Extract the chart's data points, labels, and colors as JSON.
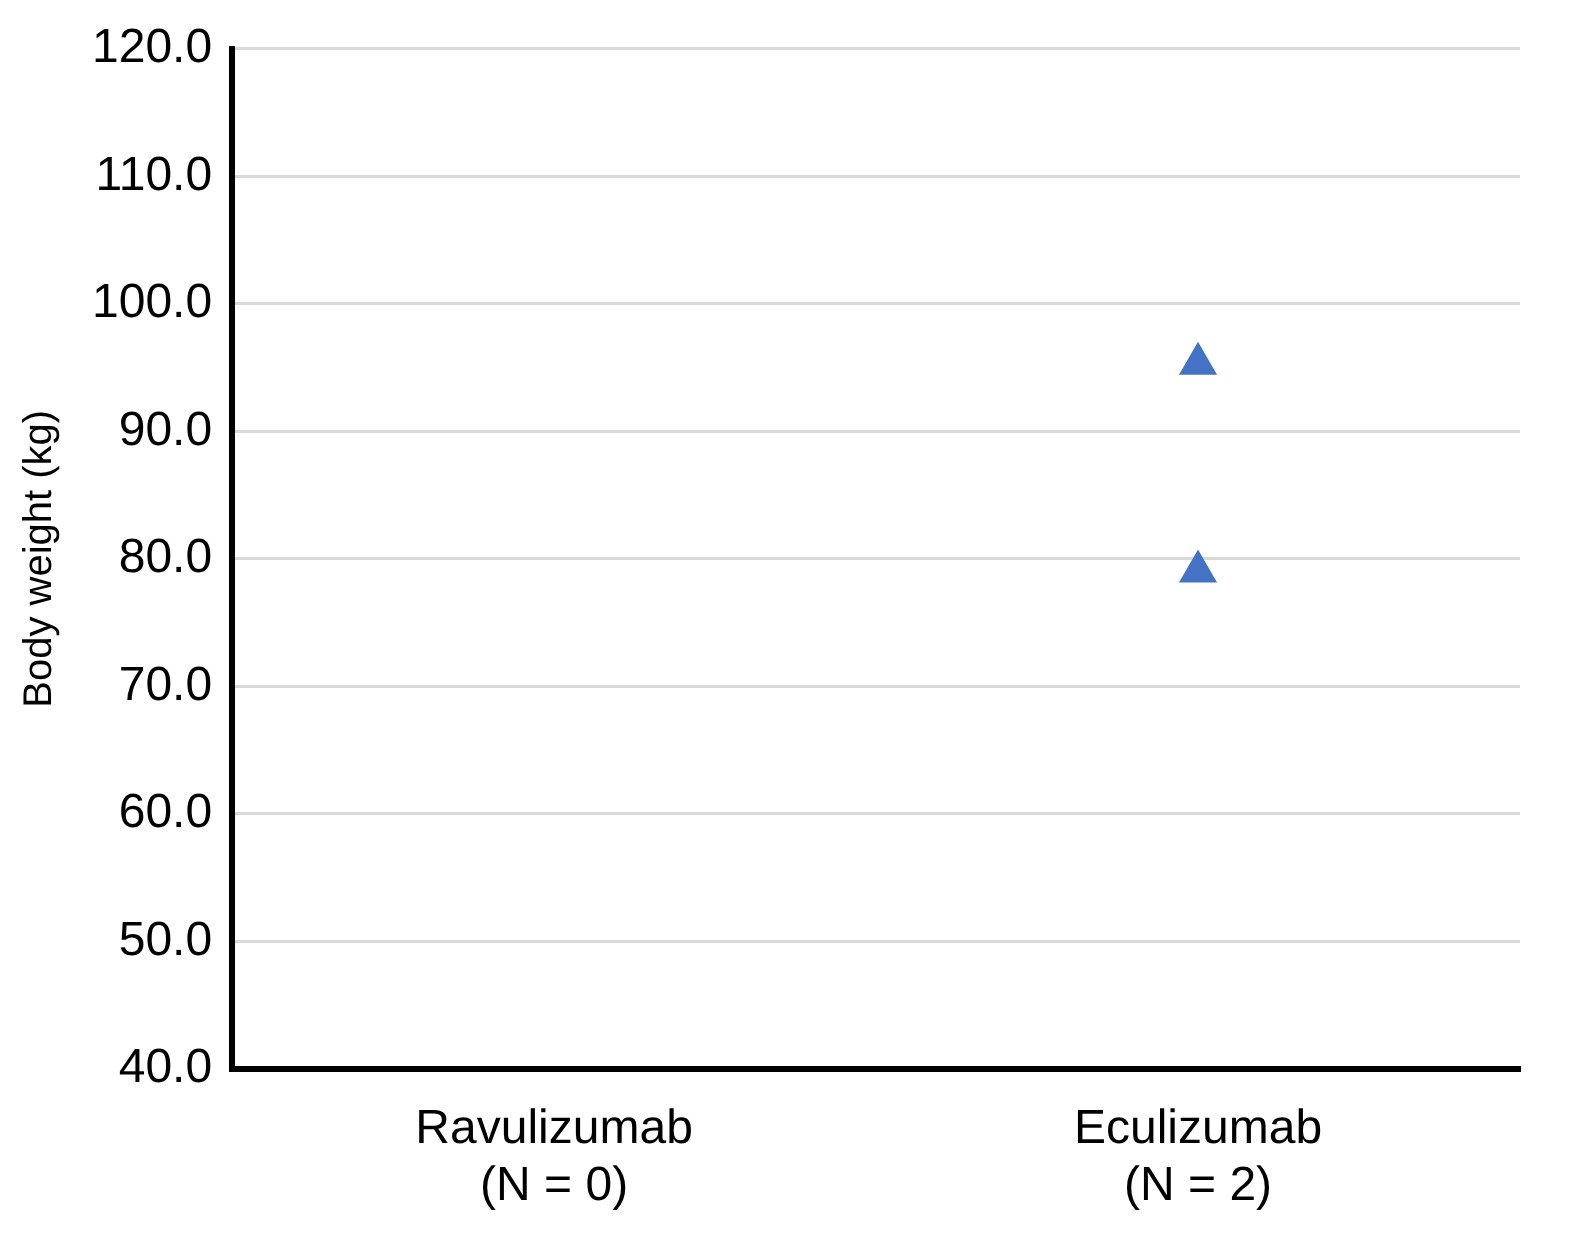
{
  "chart_data": {
    "type": "scatter",
    "ylabel": "Body weight (kg)",
    "categories": [
      "Ravulizumab\n(N = 0)",
      "Eculizumab\n(N = 2)"
    ],
    "series": [
      {
        "color": "#4472c4",
        "x": [
          "Eculizumab\n(N = 2)",
          "Eculizumab\n(N = 2)"
        ],
        "values": [
          95.3,
          79.0
        ]
      }
    ],
    "ylim": [
      40,
      120
    ],
    "yticks": [
      {
        "value": 40,
        "label": "40.0"
      },
      {
        "value": 50,
        "label": "50.0"
      },
      {
        "value": 60,
        "label": "60.0"
      },
      {
        "value": 70,
        "label": "70.0"
      },
      {
        "value": 80,
        "label": "80.0"
      },
      {
        "value": 90,
        "label": "90.0"
      },
      {
        "value": 100,
        "label": "100.0"
      },
      {
        "value": 110,
        "label": "110.0"
      },
      {
        "value": 120,
        "label": "120.0"
      }
    ],
    "grid": "y",
    "marker": "triangle",
    "legend": false
  }
}
